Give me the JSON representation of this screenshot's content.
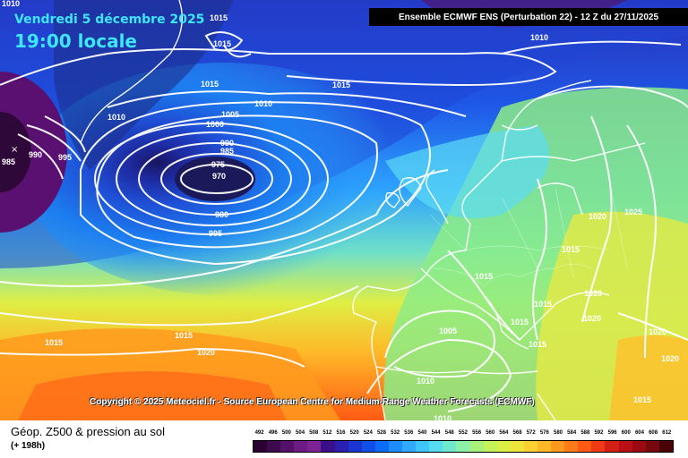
{
  "header": {
    "date": "Vendredi 5 décembre 2025",
    "time": "19:00 locale",
    "run_info": "Ensemble ECMWF ENS  (Perturbation 22)  - 12 Z du 27/11/2025"
  },
  "copyright": "Copyright © 2025 Meteociel.fr - Source European Centre for Medium-Range Weather Forecasts (ECMWF)",
  "legend": {
    "variable": "Géop. Z500 & pression au sol",
    "lead_time": "(+ 198h)",
    "scale_values": [
      "492",
      "496",
      "500",
      "504",
      "508",
      "512",
      "516",
      "520",
      "524",
      "528",
      "532",
      "536",
      "540",
      "544",
      "548",
      "552",
      "556",
      "560",
      "564",
      "568",
      "572",
      "576",
      "580",
      "584",
      "588",
      "592",
      "596",
      "600",
      "604",
      "608",
      "612"
    ],
    "scale_colors": [
      "#2a0030",
      "#3d0a4e",
      "#55106a",
      "#6c1a84",
      "#7d2396",
      "#3a0f8a",
      "#2a1fb0",
      "#1b36d0",
      "#0f4fe8",
      "#0a6cf8",
      "#1e8cff",
      "#2faaff",
      "#3fc6ff",
      "#55dcf0",
      "#6fe8d0",
      "#8cf0a8",
      "#a8f27c",
      "#c4f25a",
      "#dcef44",
      "#efe43a",
      "#fbd030",
      "#ffb828",
      "#ff9a1e",
      "#ff7a18",
      "#ff5a14",
      "#ef3a14",
      "#d42014",
      "#b81014",
      "#9a0a10",
      "#780810",
      "#4a0408"
    ]
  },
  "pressure_labels": [
    {
      "text": "1015",
      "name": "label-top-1015"
    },
    {
      "text": "1010",
      "name": "label-nw-1010"
    },
    {
      "text": "1010",
      "name": "label-ne-1010"
    },
    {
      "text": "1015",
      "name": "label-iceland-1015"
    },
    {
      "text": "1015",
      "name": "label-iceland2-1015"
    },
    {
      "text": "1015",
      "name": "label-north-atl-1015"
    },
    {
      "text": "1010",
      "name": "label-mid-1010"
    },
    {
      "text": "1005",
      "name": "label-1005"
    },
    {
      "text": "1000",
      "name": "label-1000"
    },
    {
      "text": "990",
      "name": "label-990"
    },
    {
      "text": "985",
      "name": "label-985"
    },
    {
      "text": "975",
      "name": "label-975"
    },
    {
      "text": "970",
      "name": "label-970"
    },
    {
      "text": "980",
      "name": "label-980"
    },
    {
      "text": "995",
      "name": "label-995"
    },
    {
      "text": "1010",
      "name": "label-greenland-1010"
    },
    {
      "text": "985",
      "name": "label-west-985"
    },
    {
      "text": "990",
      "name": "label-west-990"
    },
    {
      "text": "995",
      "name": "label-west-995"
    },
    {
      "text": "1015",
      "name": "label-sw-1015"
    },
    {
      "text": "1015",
      "name": "label-azores-1015"
    },
    {
      "text": "1020",
      "name": "label-azores-1020"
    },
    {
      "text": "1005",
      "name": "label-iberia-1005"
    },
    {
      "text": "1010",
      "name": "label-iberia-1010"
    },
    {
      "text": "1010",
      "name": "label-africa-1010"
    },
    {
      "text": "1015",
      "name": "label-france-1015"
    },
    {
      "text": "1015",
      "name": "label-italy-1015"
    },
    {
      "text": "1015",
      "name": "label-balkan-1015"
    },
    {
      "text": "1015",
      "name": "label-med-1015"
    },
    {
      "text": "1020",
      "name": "label-russia-1020"
    },
    {
      "text": "1025",
      "name": "label-russia-1025"
    },
    {
      "text": "1015",
      "name": "label-ukraine-1015"
    },
    {
      "text": "1020",
      "name": "label-turkey-1020"
    },
    {
      "text": "1020",
      "name": "label-east-1020"
    },
    {
      "text": "1020",
      "name": "label-mideast-1020"
    },
    {
      "text": "1015",
      "name": "label-se-1015"
    },
    {
      "text": "1020",
      "name": "label-black-sea-1020"
    }
  ]
}
